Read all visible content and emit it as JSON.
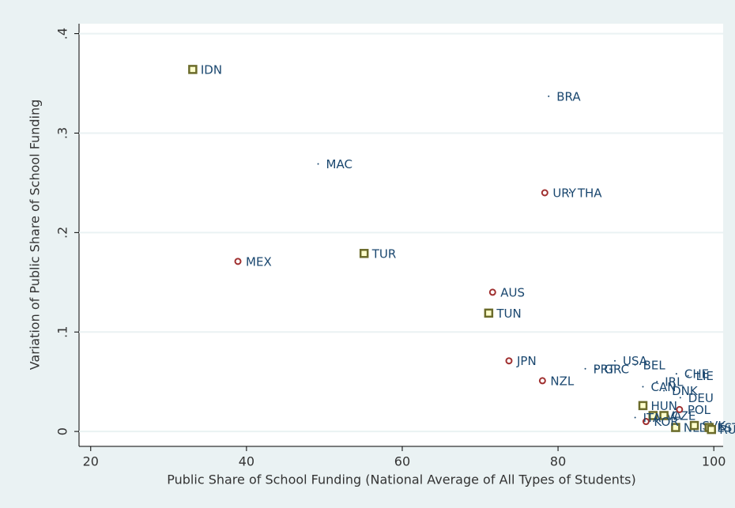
{
  "chart_data": {
    "type": "scatter",
    "x_label": "Public Share of School Funding (National Average of All Types of Students)",
    "y_label": "Variation of Public Share of School Funding",
    "xlim": [
      18.5,
      101.2
    ],
    "ylim": [
      -0.015,
      0.41
    ],
    "xticks": [
      20,
      40,
      60,
      80,
      100
    ],
    "yticks": [
      0,
      {
        "value": 0.1,
        "label": ".1"
      },
      {
        "value": 0.2,
        "label": ".2"
      },
      {
        "value": 0.3,
        "label": ".3"
      },
      {
        "value": 0.4,
        "label": ".4"
      }
    ],
    "grid": true,
    "series": [
      {
        "marker": "square",
        "color": "#6b6b2a",
        "x": [
          33.1,
          55.1,
          71.1,
          90.9,
          92.2,
          93.6,
          95.1,
          97.5,
          99.4,
          99.7
        ],
        "values": [
          0.364,
          0.179,
          0.119,
          0.026,
          0.016,
          0.016,
          0.004,
          0.006,
          0.004,
          0.002
        ],
        "labels": [
          "IDN",
          "TUR",
          "TUN",
          "HUN",
          "LVA",
          "CZE",
          "NLD",
          "SVK",
          "EST",
          "RUS"
        ]
      },
      {
        "marker": "circle",
        "color": "#a03030",
        "x": [
          38.9,
          78.3,
          71.6,
          73.7,
          78.0,
          91.3,
          95.6
        ],
        "values": [
          0.171,
          0.24,
          0.14,
          0.071,
          0.051,
          0.01,
          0.022
        ],
        "labels": [
          "MEX",
          "URY",
          "AUS",
          "JPN",
          "NZL",
          "KOR",
          "POL"
        ]
      },
      {
        "marker": "dot",
        "color": "#1a476f",
        "x": [
          78.8,
          49.2,
          81.5,
          83.5,
          84.9,
          87.3,
          89.9,
          90.9,
          92.7,
          93.6,
          95.2,
          96.7,
          95.7,
          89.9
        ],
        "values": [
          0.337,
          0.269,
          0.24,
          0.063,
          0.063,
          0.071,
          0.067,
          0.045,
          0.05,
          0.041,
          0.058,
          0.056,
          0.034,
          0.014
        ],
        "labels": [
          "BRA",
          "MAC",
          "THA",
          "PRT",
          "GRC",
          "USA",
          "BEL",
          "CAN",
          "IRL",
          "DNK",
          "CHE",
          "LIE",
          "DEU",
          "ITA"
        ]
      }
    ]
  }
}
